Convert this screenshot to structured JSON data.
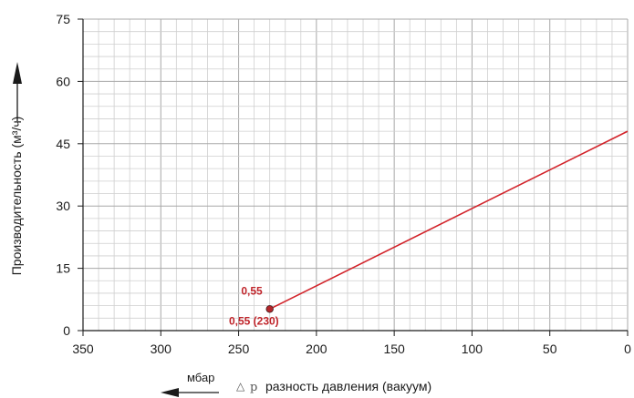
{
  "chart_data": {
    "type": "line",
    "title": "",
    "xlabel": "разность давления (вакуум)",
    "xlabel_symbol": "△",
    "xlabel_variable": "p",
    "xunit": "мбар",
    "ylabel": "Производительность (м³/ч)",
    "xlim": [
      350,
      0
    ],
    "ylim": [
      0,
      75
    ],
    "x_reversed": true,
    "x_ticks": [
      350,
      300,
      250,
      200,
      150,
      100,
      50,
      0
    ],
    "y_ticks": [
      0,
      15,
      30,
      45,
      60,
      75
    ],
    "x_tick_labels": [
      "350",
      "300",
      "250",
      "200",
      "150",
      "100",
      "50",
      "0"
    ],
    "y_tick_labels": [
      "0",
      "15",
      "30",
      "45",
      "60",
      "75"
    ],
    "grid": true,
    "series": [
      {
        "x": [
          230,
          0
        ],
        "y": [
          5.2,
          48
        ],
        "color": "#d2232a"
      }
    ],
    "annotations": [
      {
        "text": "0,55",
        "x": 230,
        "y": 5.2,
        "color": "#c0252b"
      },
      {
        "text": "0,55 (230)",
        "x": 230,
        "y": 5.2,
        "color": "#c0252b"
      }
    ]
  }
}
